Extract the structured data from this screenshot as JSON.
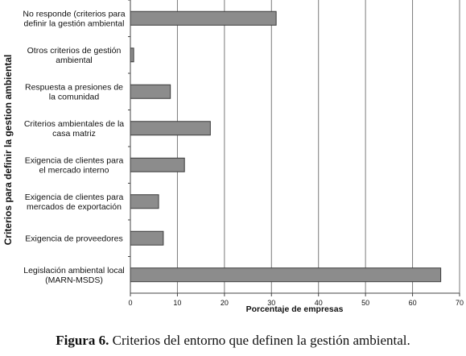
{
  "chart_data": {
    "type": "bar",
    "orientation": "horizontal",
    "categories": [
      [
        "No responde (criterios para",
        "definir la gestión ambiental"
      ],
      [
        "Otros criterios de gestión",
        "ambiental"
      ],
      [
        "Respuesta a presiones de",
        "la comunidad"
      ],
      [
        "Criterios ambientales de la",
        "casa matriz"
      ],
      [
        "Exigencia de clientes para",
        "el  mercado interno"
      ],
      [
        "Exigencia de clientes para",
        "mercados de exportación"
      ],
      [
        "Exigencia de proveedores"
      ],
      [
        "Legislación ambiental local",
        "(MARN-MSDS)"
      ]
    ],
    "values": [
      31,
      0.7,
      8.5,
      17,
      11.5,
      6,
      7,
      66
    ],
    "xlabel": "Porcentaje de empresas",
    "ylabel": "Criterios para definir la gestion ambiental",
    "xlim": [
      0,
      70
    ],
    "xticks": [
      0,
      10,
      20,
      30,
      40,
      50,
      60,
      70
    ],
    "grid": true,
    "colors": {
      "bar_fill": "#8c8c8c",
      "bar_stroke": "#3a3a3a",
      "grid": "#7a7a7a",
      "axis": "#444444"
    }
  },
  "caption": {
    "label": "Figura 6.",
    "text": " Criterios del entorno que definen la gestión ambiental."
  }
}
